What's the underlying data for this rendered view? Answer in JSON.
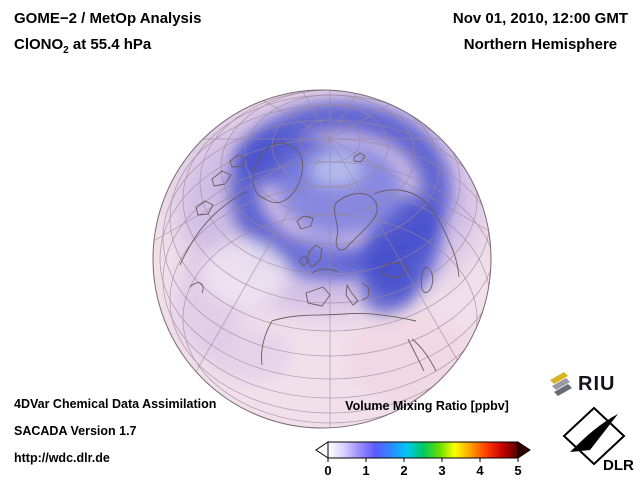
{
  "header": {
    "title": "GOME−2 / MetOp Analysis",
    "species": "ClONO",
    "species_sub": "2",
    "level_suffix": " at 55.4 hPa",
    "datetime": "Nov 01, 2010, 12:00 GMT",
    "hemisphere": "Northern Hemisphere"
  },
  "footer": {
    "line1": "4DVar Chemical Data Assimilation",
    "line2": "SACADA Version 1.7",
    "line3": "http://wdc.dlr.de"
  },
  "colorbar": {
    "title": "Volume Mixing Ratio [ppbv]",
    "unit": "ppbv",
    "range": [
      0,
      5
    ],
    "ticks": [
      "0",
      "1",
      "2",
      "3",
      "4",
      "5"
    ],
    "gradient_colors": [
      "#ffffff",
      "#d8d0ff",
      "#9a8cff",
      "#5a5aff",
      "#2a8cff",
      "#00c8f0",
      "#00c860",
      "#64dc00",
      "#ffff00",
      "#ffa000",
      "#ff3c00",
      "#c80000",
      "#500000"
    ]
  },
  "logos": {
    "riu": "RIU",
    "dlr": "DLR"
  },
  "colors": {
    "globe_base": "#f1e0ea",
    "globe_base_edge": "#ecd2e2",
    "lavender": "#c7b4e4",
    "vortex_deep": "#4450cc",
    "vortex_mid": "#7b80e0",
    "pole_light": "#b9c0ee",
    "purple_light": "#d9c2e8",
    "land_line": "#6b5a5a",
    "grid_line": "#9b8898"
  }
}
